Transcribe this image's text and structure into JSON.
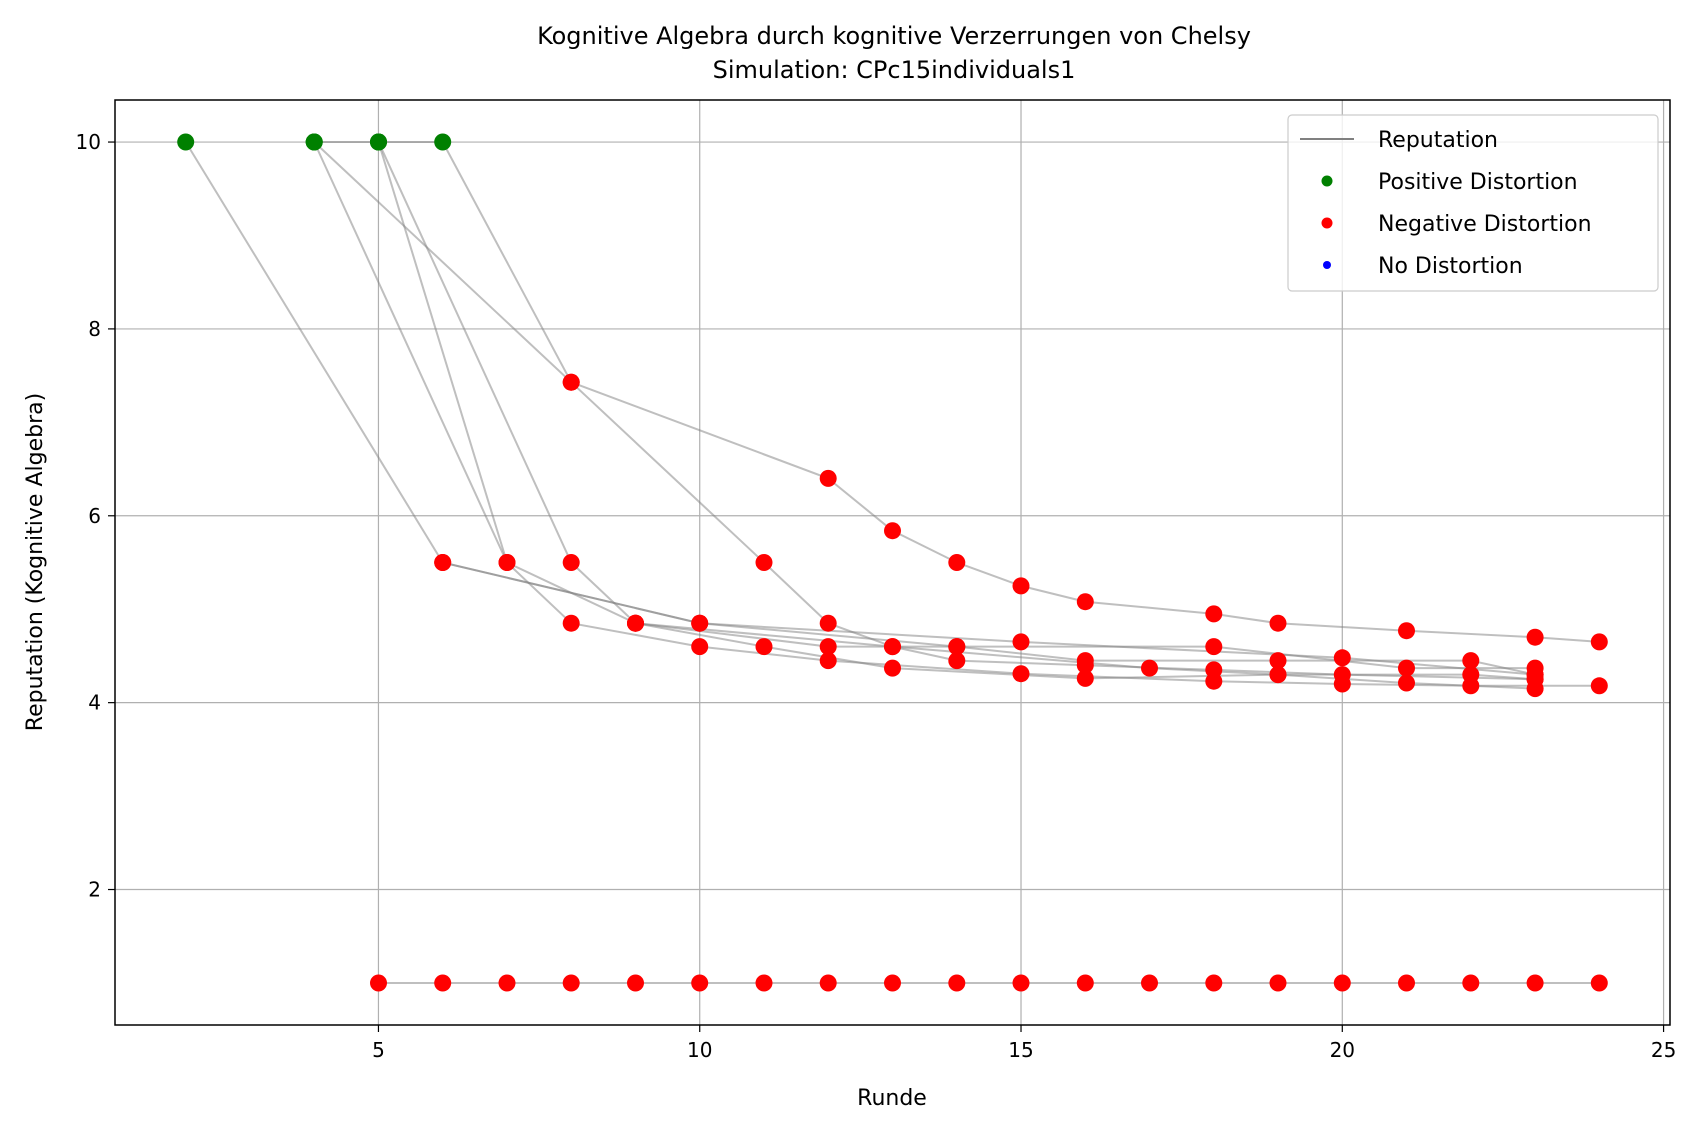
{
  "chart_data": {
    "type": "scatter",
    "title": "Kognitive Algebra durch kognitive Verzerrungen von Chelsy",
    "subtitle": "Simulation: CPc15individuals1",
    "xlabel": "Runde",
    "ylabel": "Reputation (Kognitive Algebra)",
    "xlim": [
      0.9,
      25.1
    ],
    "ylim": [
      0.55,
      10.45
    ],
    "xticks": [
      5,
      10,
      15,
      20,
      25
    ],
    "yticks": [
      2,
      4,
      6,
      8,
      10
    ],
    "grid": true,
    "legend_position": "top-right",
    "legend": [
      {
        "label": "Reputation",
        "kind": "line",
        "color": "#808080"
      },
      {
        "label": "Positive Distortion",
        "kind": "point",
        "color": "#008000"
      },
      {
        "label": "Negative Distortion",
        "kind": "point",
        "color": "#ff0000"
      },
      {
        "label": "No Distortion",
        "kind": "point",
        "color": "#0000ff"
      }
    ],
    "colors": {
      "line": "#808080",
      "positive": "#008000",
      "negative": "#ff0000",
      "none": "#0000ff"
    },
    "series": [
      {
        "points": [
          [
            2,
            10
          ],
          [
            6,
            5.5
          ],
          [
            10,
            4.85
          ],
          [
            15,
            4.65
          ],
          [
            20,
            4.48
          ],
          [
            23,
            4.3
          ]
        ]
      },
      {
        "points": [
          [
            4,
            10
          ],
          [
            5,
            10
          ],
          [
            6,
            10
          ],
          [
            8,
            7.43
          ],
          [
            12,
            6.4
          ],
          [
            13,
            5.84
          ],
          [
            14,
            5.5
          ],
          [
            15,
            5.25
          ],
          [
            16,
            5.08
          ],
          [
            18,
            4.95
          ],
          [
            19,
            4.85
          ],
          [
            21,
            4.77
          ],
          [
            23,
            4.7
          ],
          [
            24,
            4.65
          ]
        ]
      },
      {
        "points": [
          [
            4,
            10
          ],
          [
            8,
            7.43
          ],
          [
            11,
            5.5
          ],
          [
            12,
            4.85
          ],
          [
            13,
            4.6
          ],
          [
            14,
            4.45
          ],
          [
            16,
            4.4
          ],
          [
            18,
            4.35
          ],
          [
            20,
            4.3
          ],
          [
            23,
            4.25
          ]
        ]
      },
      {
        "points": [
          [
            4,
            10
          ],
          [
            7,
            5.5
          ],
          [
            9,
            4.85
          ],
          [
            12,
            4.6
          ],
          [
            14,
            4.6
          ],
          [
            16,
            4.45
          ],
          [
            19,
            4.45
          ],
          [
            22,
            4.45
          ],
          [
            23,
            4.3
          ]
        ]
      },
      {
        "points": [
          [
            5,
            10
          ],
          [
            7,
            5.5
          ],
          [
            8,
            4.85
          ],
          [
            10,
            4.6
          ],
          [
            12,
            4.45
          ],
          [
            15,
            4.31
          ],
          [
            18,
            4.23
          ],
          [
            20,
            4.2
          ],
          [
            22,
            4.18
          ],
          [
            24,
            4.18
          ]
        ]
      },
      {
        "points": [
          [
            5,
            10
          ],
          [
            8,
            5.5
          ],
          [
            9,
            4.85
          ],
          [
            11,
            4.6
          ],
          [
            13,
            4.37
          ],
          [
            16,
            4.26
          ],
          [
            19,
            4.3
          ],
          [
            21,
            4.21
          ],
          [
            23,
            4.15
          ]
        ]
      },
      {
        "points": [
          [
            6,
            5.5
          ],
          [
            10,
            4.85
          ],
          [
            14,
            4.6
          ],
          [
            18,
            4.6
          ],
          [
            21,
            4.37
          ],
          [
            23,
            4.37
          ]
        ]
      },
      {
        "points": [
          [
            9,
            4.85
          ],
          [
            13,
            4.6
          ],
          [
            17,
            4.37
          ],
          [
            19,
            4.3
          ],
          [
            22,
            4.3
          ],
          [
            23,
            4.25
          ]
        ]
      },
      {
        "points": [
          [
            5,
            1
          ],
          [
            6,
            1
          ],
          [
            7,
            1
          ],
          [
            8,
            1
          ],
          [
            9,
            1
          ],
          [
            10,
            1
          ],
          [
            11,
            1
          ],
          [
            12,
            1
          ],
          [
            13,
            1
          ],
          [
            14,
            1
          ],
          [
            15,
            1
          ],
          [
            16,
            1
          ],
          [
            17,
            1
          ],
          [
            18,
            1
          ],
          [
            19,
            1
          ],
          [
            20,
            1
          ],
          [
            21,
            1
          ],
          [
            22,
            1
          ],
          [
            23,
            1
          ],
          [
            24,
            1
          ]
        ]
      }
    ]
  }
}
